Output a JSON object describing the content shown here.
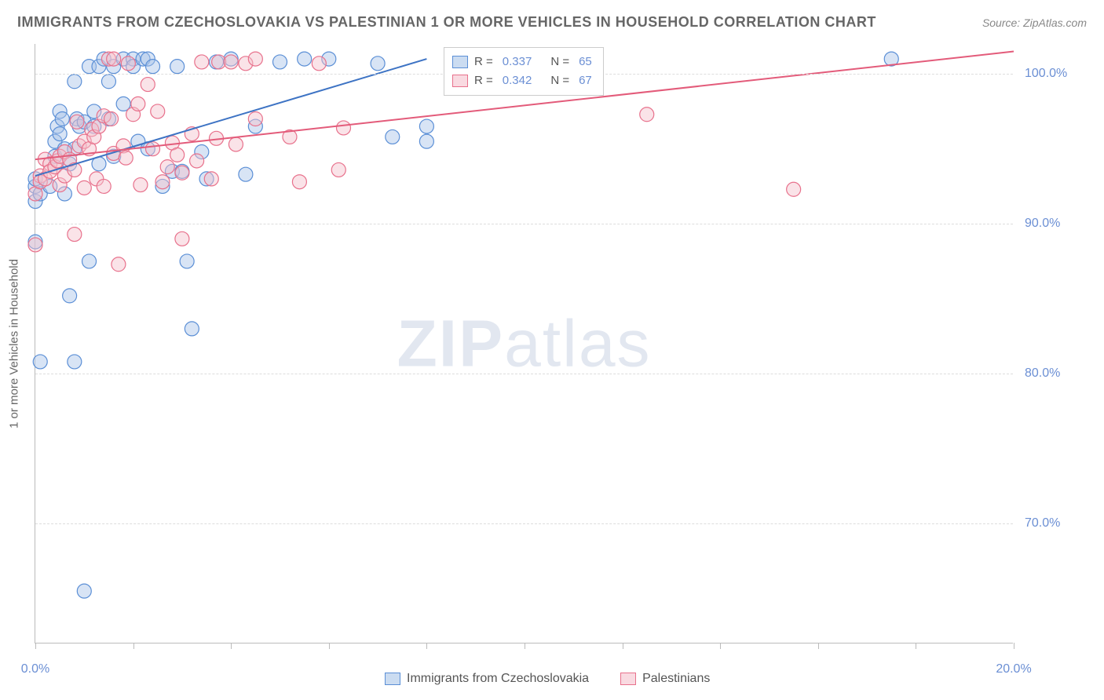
{
  "title": "IMMIGRANTS FROM CZECHOSLOVAKIA VS PALESTINIAN 1 OR MORE VEHICLES IN HOUSEHOLD CORRELATION CHART",
  "source_label": "Source: ZipAtlas.com",
  "watermark_zip": "ZIP",
  "watermark_atlas": "atlas",
  "y_axis_label": "1 or more Vehicles in Household",
  "chart": {
    "type": "scatter",
    "background_color": "#ffffff",
    "grid_color": "#dddddd",
    "axis_color": "#bbbbbb",
    "tick_label_color": "#6b8fd4",
    "label_color": "#666666",
    "title_fontsize": 18,
    "label_fontsize": 15,
    "tick_fontsize": 16,
    "xlim": [
      0,
      20
    ],
    "ylim": [
      62,
      102
    ],
    "x_ticks": [
      0,
      2,
      4,
      6,
      8,
      10,
      12,
      14,
      16,
      18,
      20
    ],
    "x_tick_labels": {
      "0": "0.0%",
      "20": "20.0%"
    },
    "y_gridlines": [
      70,
      80,
      90,
      100
    ],
    "y_tick_labels": {
      "70": "70.0%",
      "80": "80.0%",
      "90": "90.0%",
      "100": "100.0%"
    },
    "marker_radius": 9,
    "marker_opacity": 0.45,
    "marker_stroke_width": 1.2,
    "trend_line_width": 2,
    "series": [
      {
        "key": "czech",
        "label": "Immigrants from Czechoslovakia",
        "fill_color": "#a8c4e8",
        "stroke_color": "#5b8fd6",
        "line_color": "#3d73c4",
        "r_value": "0.337",
        "n_value": "65",
        "trend": {
          "x1": 0,
          "y1": 93.2,
          "x2": 8.0,
          "y2": 101.0
        },
        "points": [
          [
            0.0,
            91.5
          ],
          [
            0.0,
            88.8
          ],
          [
            0.0,
            92.5
          ],
          [
            0.0,
            93.0
          ],
          [
            0.1,
            80.8
          ],
          [
            0.1,
            92.0
          ],
          [
            0.3,
            92.5
          ],
          [
            0.4,
            94.5
          ],
          [
            0.4,
            95.5
          ],
          [
            0.45,
            96.5
          ],
          [
            0.5,
            96.0
          ],
          [
            0.5,
            97.5
          ],
          [
            0.55,
            97.0
          ],
          [
            0.6,
            92.0
          ],
          [
            0.6,
            95.0
          ],
          [
            0.7,
            85.2
          ],
          [
            0.7,
            94.0
          ],
          [
            0.8,
            95.0
          ],
          [
            0.8,
            99.5
          ],
          [
            0.8,
            80.8
          ],
          [
            0.85,
            97.0
          ],
          [
            0.9,
            96.5
          ],
          [
            1.0,
            65.5
          ],
          [
            1.0,
            96.8
          ],
          [
            1.1,
            87.5
          ],
          [
            1.1,
            100.5
          ],
          [
            1.2,
            97.5
          ],
          [
            1.2,
            96.5
          ],
          [
            1.3,
            94.0
          ],
          [
            1.3,
            100.5
          ],
          [
            1.4,
            101.0
          ],
          [
            1.5,
            97.0
          ],
          [
            1.5,
            99.5
          ],
          [
            1.6,
            94.5
          ],
          [
            1.6,
            100.5
          ],
          [
            1.8,
            101.0
          ],
          [
            1.8,
            98.0
          ],
          [
            2.0,
            101.0
          ],
          [
            2.0,
            100.5
          ],
          [
            2.1,
            95.5
          ],
          [
            2.2,
            101.0
          ],
          [
            2.3,
            101.0
          ],
          [
            2.3,
            95.0
          ],
          [
            2.4,
            100.5
          ],
          [
            2.6,
            92.5
          ],
          [
            2.8,
            93.5
          ],
          [
            2.9,
            100.5
          ],
          [
            3.0,
            93.5
          ],
          [
            3.1,
            87.5
          ],
          [
            3.2,
            83.0
          ],
          [
            3.4,
            94.8
          ],
          [
            3.5,
            93.0
          ],
          [
            3.7,
            100.8
          ],
          [
            4.0,
            101.0
          ],
          [
            4.3,
            93.3
          ],
          [
            4.5,
            96.5
          ],
          [
            5.0,
            100.8
          ],
          [
            5.5,
            101.0
          ],
          [
            6.0,
            101.0
          ],
          [
            7.0,
            100.7
          ],
          [
            7.3,
            95.8
          ],
          [
            8.0,
            95.5
          ],
          [
            8.0,
            96.5
          ],
          [
            10.8,
            101.0
          ],
          [
            17.5,
            101.0
          ]
        ]
      },
      {
        "key": "palestinian",
        "label": "Palestinians",
        "fill_color": "#f5c2cd",
        "stroke_color": "#e8718c",
        "line_color": "#e35b7a",
        "r_value": "0.342",
        "n_value": "67",
        "trend": {
          "x1": 0,
          "y1": 94.3,
          "x2": 20.0,
          "y2": 101.5
        },
        "points": [
          [
            0.0,
            88.6
          ],
          [
            0.0,
            92.0
          ],
          [
            0.1,
            93.2
          ],
          [
            0.1,
            92.8
          ],
          [
            0.2,
            94.3
          ],
          [
            0.2,
            93.0
          ],
          [
            0.3,
            94.0
          ],
          [
            0.3,
            93.5
          ],
          [
            0.4,
            93.8
          ],
          [
            0.45,
            94.2
          ],
          [
            0.5,
            92.6
          ],
          [
            0.5,
            94.5
          ],
          [
            0.6,
            94.8
          ],
          [
            0.6,
            93.2
          ],
          [
            0.7,
            94.3
          ],
          [
            0.8,
            89.3
          ],
          [
            0.8,
            93.6
          ],
          [
            0.85,
            96.8
          ],
          [
            0.9,
            95.2
          ],
          [
            1.0,
            95.5
          ],
          [
            1.0,
            92.4
          ],
          [
            1.1,
            95.0
          ],
          [
            1.15,
            96.3
          ],
          [
            1.2,
            95.8
          ],
          [
            1.25,
            93.0
          ],
          [
            1.3,
            96.5
          ],
          [
            1.4,
            92.5
          ],
          [
            1.4,
            97.2
          ],
          [
            1.5,
            101.0
          ],
          [
            1.55,
            97.0
          ],
          [
            1.6,
            101.0
          ],
          [
            1.6,
            94.7
          ],
          [
            1.7,
            87.3
          ],
          [
            1.8,
            95.2
          ],
          [
            1.85,
            94.4
          ],
          [
            1.9,
            100.7
          ],
          [
            2.0,
            97.3
          ],
          [
            2.1,
            98.0
          ],
          [
            2.15,
            92.6
          ],
          [
            2.3,
            99.3
          ],
          [
            2.4,
            95.0
          ],
          [
            2.5,
            97.5
          ],
          [
            2.6,
            92.8
          ],
          [
            2.7,
            93.8
          ],
          [
            2.8,
            95.4
          ],
          [
            2.9,
            94.6
          ],
          [
            3.0,
            93.4
          ],
          [
            3.0,
            89.0
          ],
          [
            3.2,
            96.0
          ],
          [
            3.3,
            94.2
          ],
          [
            3.4,
            100.8
          ],
          [
            3.6,
            93.0
          ],
          [
            3.7,
            95.7
          ],
          [
            3.75,
            100.8
          ],
          [
            4.0,
            100.8
          ],
          [
            4.1,
            95.3
          ],
          [
            4.3,
            100.7
          ],
          [
            4.5,
            97.0
          ],
          [
            4.5,
            101.0
          ],
          [
            5.2,
            95.8
          ],
          [
            5.4,
            92.8
          ],
          [
            5.8,
            100.7
          ],
          [
            6.2,
            93.6
          ],
          [
            6.3,
            96.4
          ],
          [
            11.0,
            100.8
          ],
          [
            12.5,
            97.3
          ],
          [
            15.5,
            92.3
          ]
        ]
      }
    ],
    "legend_box": {
      "R_label_prefix": "R =",
      "N_label_prefix": "N ="
    },
    "bottom_legend_labels": [
      "Immigrants from Czechoslovakia",
      "Palestinians"
    ]
  }
}
